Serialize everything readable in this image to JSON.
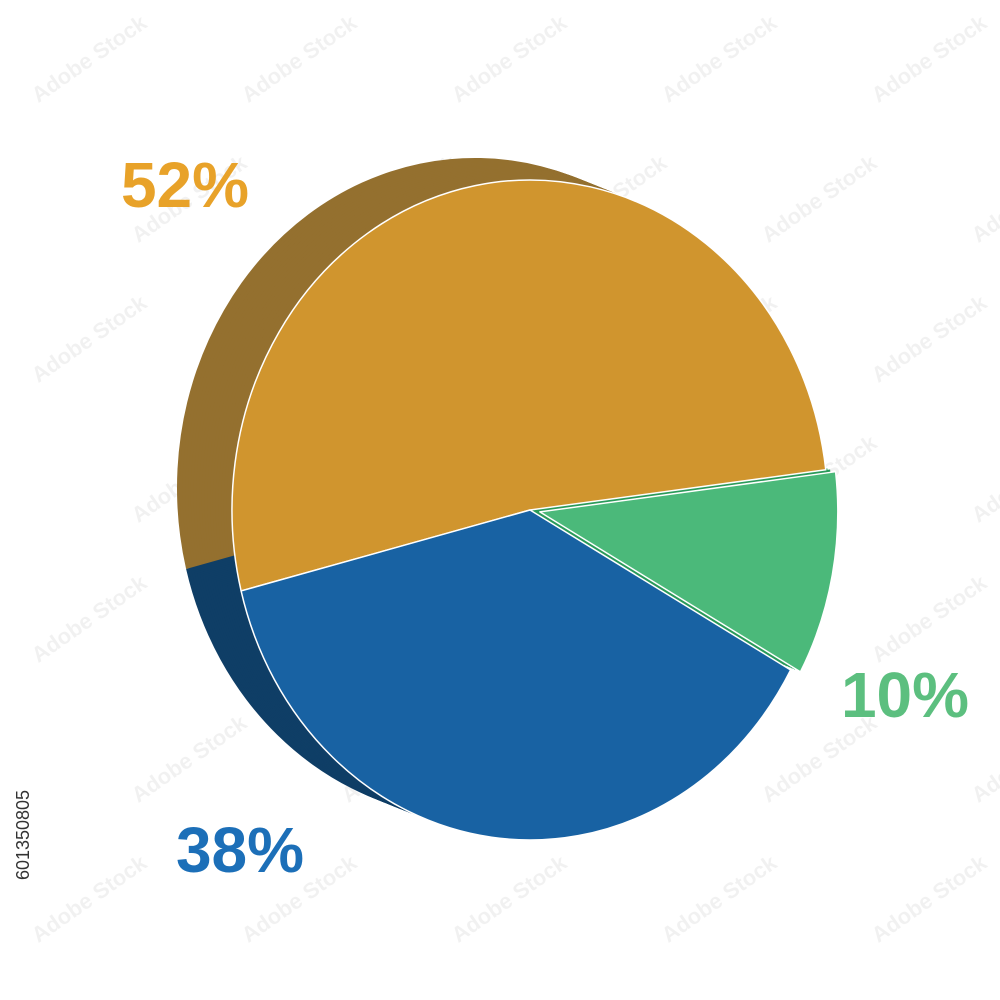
{
  "chart_data": {
    "type": "pie",
    "categories": [
      null,
      null,
      null
    ],
    "values": [
      52,
      38,
      10
    ],
    "value_labels": [
      "52%",
      "38%",
      "10%"
    ],
    "colors": [
      "#d0952e",
      "#1862a3",
      "#4bb97a"
    ],
    "label_colors": [
      "#e8a229",
      "#1c6fb8",
      "#5cbf7f"
    ],
    "side_colors": [
      "#94702f",
      "#0f3e66",
      "#2a9a5a"
    ],
    "image_id": "601350805",
    "watermark": "Adobe Stock"
  }
}
